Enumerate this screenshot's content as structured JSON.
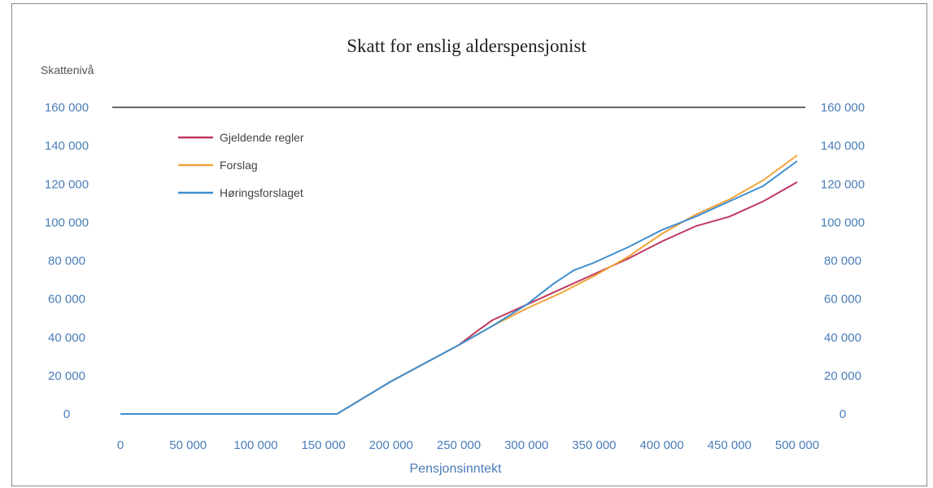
{
  "chart_data": {
    "type": "line",
    "title": "Skatt for enslig alderspensjonist",
    "ylabel": "Skattenivå",
    "xlabel": "Pensjonsinntekt",
    "xlim": [
      0,
      500000
    ],
    "ylim": [
      0,
      160000
    ],
    "x_ticks": [
      "0",
      "50 000",
      "100 000",
      "150 000",
      "200 000",
      "250 000",
      "300 000",
      "350 000",
      "400 000",
      "450 000",
      "500 000"
    ],
    "y_ticks": [
      "0",
      "20 000",
      "40 000",
      "60 000",
      "80 000",
      "100 000",
      "120 000",
      "140 000",
      "160 000"
    ],
    "legend_position": "top-left",
    "grid": false,
    "series": [
      {
        "name": "Gjeldende regler",
        "color": "#c0395e",
        "points": [
          [
            0,
            0
          ],
          [
            160000,
            0
          ],
          [
            200000,
            17000
          ],
          [
            250000,
            36000
          ],
          [
            265000,
            44000
          ],
          [
            275000,
            49000
          ],
          [
            300000,
            57000
          ],
          [
            325000,
            65000
          ],
          [
            350000,
            73000
          ],
          [
            375000,
            81000
          ],
          [
            400000,
            90000
          ],
          [
            425000,
            98000
          ],
          [
            450000,
            103000
          ],
          [
            475000,
            111000
          ],
          [
            500000,
            121000
          ]
        ]
      },
      {
        "name": "Forslag",
        "color": "#f0a33a",
        "points": [
          [
            0,
            0
          ],
          [
            160000,
            0
          ],
          [
            200000,
            17000
          ],
          [
            250000,
            36000
          ],
          [
            275000,
            46000
          ],
          [
            300000,
            55000
          ],
          [
            325000,
            63000
          ],
          [
            350000,
            72000
          ],
          [
            375000,
            82000
          ],
          [
            400000,
            94000
          ],
          [
            425000,
            104000
          ],
          [
            450000,
            112000
          ],
          [
            475000,
            122000
          ],
          [
            500000,
            135000
          ]
        ]
      },
      {
        "name": "Høringsforslaget",
        "color": "#3f8fd0",
        "points": [
          [
            0,
            0
          ],
          [
            160000,
            0
          ],
          [
            200000,
            17000
          ],
          [
            250000,
            36000
          ],
          [
            275000,
            46000
          ],
          [
            300000,
            57000
          ],
          [
            320000,
            68000
          ],
          [
            335000,
            75000
          ],
          [
            350000,
            79000
          ],
          [
            375000,
            87000
          ],
          [
            400000,
            96000
          ],
          [
            425000,
            103000
          ],
          [
            450000,
            111000
          ],
          [
            475000,
            119000
          ],
          [
            500000,
            132000
          ]
        ]
      }
    ]
  }
}
